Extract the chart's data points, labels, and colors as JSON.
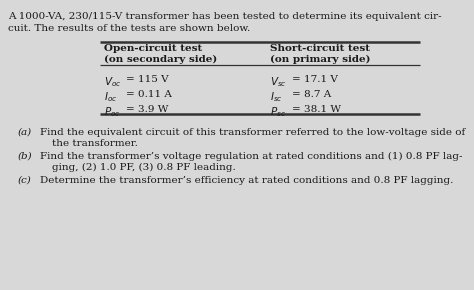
{
  "title_line1": "A 1000-VA, 230/115-V transformer has been tested to determine its equivalent cir-",
  "title_line2": "cuit. The results of the tests are shown below.",
  "col1_header_line1": "Open-circuit test",
  "col1_header_line2": "(on secondary side)",
  "col2_header_line1": "Short-circuit test",
  "col2_header_line2": "(on primary side)",
  "col1_rows": [
    "V_oc = 115 V",
    "I_oc = 0.11 A",
    "P_oc = 3.9 W"
  ],
  "col2_rows": [
    "V_sc = 17.1 V",
    "I_sc = 8.7 A",
    "P_sc = 38.1 W"
  ],
  "part_a_label": "(a)",
  "part_a_text1": "Find the equivalent circuit of this transformer referred to the low-voltage side of",
  "part_a_text2": "the transformer.",
  "part_b_label": "(b)",
  "part_b_text1": "Find the transformer’s voltage regulation at rated conditions and (1) 0.8 PF lag-",
  "part_b_text2": "ging, (2) 1.0 PF, (3) 0.8 PF leading.",
  "part_c_label": "(c)",
  "part_c_text1": "Determine the transformer’s efficiency at rated conditions and 0.8 PF lagging.",
  "bg_color": "#d8d8d8",
  "text_color": "#1a1a1a",
  "table_line_color": "#333333"
}
